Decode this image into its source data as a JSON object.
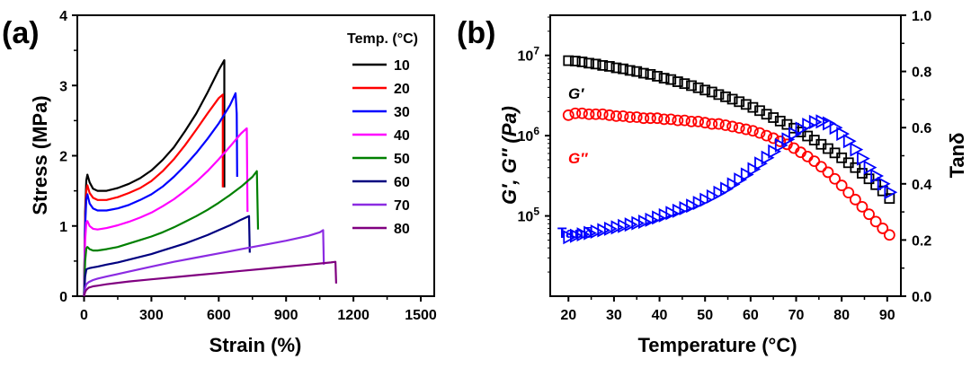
{
  "chart_data": [
    {
      "panel_label": "(a)",
      "type": "line",
      "xlabel": "Strain (%)",
      "ylabel": "Stress (MPa)",
      "xlim": [
        -30,
        1560
      ],
      "ylim": [
        0,
        4
      ],
      "xticks": [
        0,
        300,
        600,
        900,
        1200,
        1500
      ],
      "yticks": [
        0,
        1,
        2,
        3,
        4
      ],
      "grid": false,
      "legend": {
        "title": "Temp. (°C)",
        "placement": "top-right"
      },
      "series": [
        {
          "name": "10",
          "color": "#000000",
          "x": [
            0,
            5,
            10,
            15,
            25,
            40,
            60,
            100,
            150,
            200,
            250,
            300,
            350,
            400,
            450,
            500,
            550,
            600,
            625,
            625
          ],
          "y": [
            0,
            1.2,
            1.65,
            1.73,
            1.62,
            1.53,
            1.5,
            1.5,
            1.54,
            1.6,
            1.68,
            1.79,
            1.94,
            2.12,
            2.35,
            2.6,
            2.9,
            3.22,
            3.36,
            1.55
          ]
        },
        {
          "name": "20",
          "color": "#ff0000",
          "x": [
            0,
            5,
            10,
            15,
            25,
            40,
            60,
            100,
            150,
            200,
            250,
            300,
            350,
            400,
            450,
            500,
            550,
            600,
            618,
            618
          ],
          "y": [
            0,
            1.1,
            1.5,
            1.58,
            1.47,
            1.4,
            1.37,
            1.37,
            1.41,
            1.47,
            1.54,
            1.64,
            1.78,
            1.95,
            2.15,
            2.37,
            2.6,
            2.82,
            2.87,
            1.55
          ]
        },
        {
          "name": "30",
          "color": "#0000ff",
          "x": [
            0,
            5,
            10,
            15,
            25,
            40,
            60,
            100,
            150,
            200,
            250,
            300,
            350,
            400,
            450,
            500,
            550,
            600,
            650,
            675,
            680,
            682
          ],
          "y": [
            0,
            1.0,
            1.38,
            1.45,
            1.32,
            1.25,
            1.22,
            1.22,
            1.25,
            1.3,
            1.37,
            1.45,
            1.56,
            1.7,
            1.86,
            2.04,
            2.24,
            2.46,
            2.72,
            2.89,
            2.6,
            1.7
          ]
        },
        {
          "name": "40",
          "color": "#ff00ff",
          "x": [
            0,
            5,
            10,
            15,
            25,
            40,
            60,
            100,
            150,
            200,
            250,
            300,
            350,
            400,
            450,
            500,
            550,
            600,
            650,
            700,
            725,
            728
          ],
          "y": [
            0,
            0.8,
            1.05,
            1.07,
            1.0,
            0.96,
            0.95,
            0.97,
            1.01,
            1.06,
            1.12,
            1.19,
            1.28,
            1.38,
            1.5,
            1.63,
            1.78,
            1.95,
            2.13,
            2.32,
            2.39,
            1.2
          ]
        },
        {
          "name": "50",
          "color": "#008000",
          "x": [
            0,
            5,
            10,
            15,
            25,
            40,
            60,
            100,
            150,
            200,
            250,
            300,
            350,
            400,
            450,
            500,
            550,
            600,
            650,
            700,
            750,
            770,
            775
          ],
          "y": [
            0,
            0.5,
            0.68,
            0.7,
            0.67,
            0.65,
            0.65,
            0.67,
            0.7,
            0.75,
            0.8,
            0.85,
            0.91,
            0.98,
            1.06,
            1.14,
            1.23,
            1.33,
            1.44,
            1.56,
            1.7,
            1.78,
            0.95
          ]
        },
        {
          "name": "60",
          "color": "#000080",
          "x": [
            0,
            5,
            10,
            15,
            25,
            40,
            60,
            100,
            150,
            200,
            250,
            300,
            350,
            400,
            450,
            500,
            550,
            600,
            650,
            700,
            735,
            738
          ],
          "y": [
            0,
            0.28,
            0.38,
            0.39,
            0.4,
            0.41,
            0.42,
            0.45,
            0.48,
            0.52,
            0.56,
            0.6,
            0.65,
            0.7,
            0.75,
            0.81,
            0.87,
            0.94,
            1.01,
            1.09,
            1.14,
            0.62
          ]
        },
        {
          "name": "70",
          "color": "#8b2be2",
          "x": [
            0,
            5,
            10,
            20,
            40,
            60,
            100,
            200,
            300,
            400,
            500,
            600,
            700,
            800,
            900,
            1000,
            1050,
            1065,
            1068
          ],
          "y": [
            0,
            0.12,
            0.17,
            0.2,
            0.23,
            0.25,
            0.28,
            0.35,
            0.42,
            0.49,
            0.55,
            0.61,
            0.67,
            0.73,
            0.79,
            0.86,
            0.91,
            0.94,
            0.45
          ]
        },
        {
          "name": "80",
          "color": "#800080",
          "x": [
            0,
            5,
            10,
            20,
            40,
            60,
            100,
            200,
            300,
            400,
            500,
            600,
            700,
            800,
            900,
            1000,
            1100,
            1120,
            1123
          ],
          "y": [
            0,
            0.06,
            0.09,
            0.12,
            0.14,
            0.15,
            0.17,
            0.21,
            0.24,
            0.27,
            0.3,
            0.33,
            0.36,
            0.39,
            0.42,
            0.45,
            0.48,
            0.49,
            0.18
          ]
        }
      ]
    },
    {
      "panel_label": "(b)",
      "type": "scatter",
      "xlabel": "Temperature (°C)",
      "ylabel": "G′, G″ (Pa)",
      "y2label": "Tanδ",
      "xlim": [
        16,
        93
      ],
      "ylim_log": [
        4,
        7.5
      ],
      "y2lim": [
        0,
        1
      ],
      "xticks": [
        20,
        30,
        40,
        50,
        60,
        70,
        80,
        90
      ],
      "yticks_log": [
        "10^5",
        "10^6",
        "10^7"
      ],
      "y2ticks": [
        "0.0",
        "0.2",
        "0.4",
        "0.6",
        "0.8",
        "1.0"
      ],
      "grid": false,
      "x": [
        20,
        21.5,
        23,
        24.5,
        26,
        27.5,
        29,
        30.5,
        32,
        33.5,
        35,
        36.5,
        38,
        39.5,
        41,
        42.5,
        44,
        45.5,
        47,
        48.5,
        50,
        51.5,
        53,
        54.5,
        56,
        57.5,
        59,
        60.5,
        62,
        63.5,
        65,
        66.5,
        68,
        69.5,
        71,
        72.5,
        74,
        75.5,
        77,
        78.5,
        80,
        81.5,
        83,
        84.5,
        86,
        87.5,
        89,
        90.5
      ],
      "series": [
        {
          "name": "G′",
          "marker": "square",
          "color": "#000000",
          "axis": "left",
          "values": [
            8600000,
            8500000,
            8300000,
            8000000,
            7800000,
            7500000,
            7300000,
            7000000,
            6800000,
            6500000,
            6300000,
            6000000,
            5800000,
            5500000,
            5200000,
            5000000,
            4700000,
            4450000,
            4200000,
            3950000,
            3700000,
            3500000,
            3250000,
            3050000,
            2850000,
            2650000,
            2450000,
            2250000,
            2050000,
            1850000,
            1680000,
            1520000,
            1380000,
            1240000,
            1110000,
            990000,
            880000,
            780000,
            690000,
            610000,
            530000,
            460000,
            400000,
            340000,
            290000,
            245000,
            205000,
            165000
          ]
        },
        {
          "name": "G″",
          "marker": "circle",
          "color": "#ff0000",
          "axis": "left",
          "values": [
            1800000,
            1900000,
            1900000,
            1850000,
            1850000,
            1850000,
            1800000,
            1750000,
            1750000,
            1700000,
            1700000,
            1650000,
            1650000,
            1650000,
            1600000,
            1600000,
            1550000,
            1550000,
            1500000,
            1500000,
            1450000,
            1400000,
            1400000,
            1350000,
            1300000,
            1250000,
            1200000,
            1150000,
            1080000,
            1000000,
            930000,
            850000,
            780000,
            700000,
            620000,
            550000,
            480000,
            410000,
            350000,
            290000,
            240000,
            195000,
            160000,
            130000,
            105000,
            85000,
            70000,
            58000
          ]
        },
        {
          "name": "Tanδ",
          "marker": "triangle-right",
          "color": "#0000ff",
          "axis": "right",
          "values": [
            0.21,
            0.215,
            0.22,
            0.225,
            0.23,
            0.235,
            0.24,
            0.245,
            0.25,
            0.255,
            0.26,
            0.265,
            0.272,
            0.28,
            0.288,
            0.296,
            0.304,
            0.313,
            0.322,
            0.332,
            0.343,
            0.355,
            0.368,
            0.382,
            0.398,
            0.415,
            0.433,
            0.452,
            0.472,
            0.493,
            0.515,
            0.537,
            0.558,
            0.578,
            0.596,
            0.61,
            0.62,
            0.622,
            0.615,
            0.6,
            0.578,
            0.552,
            0.522,
            0.49,
            0.458,
            0.428,
            0.4,
            0.37
          ]
        }
      ],
      "annotations": [
        {
          "text": "G′",
          "color": "#000000"
        },
        {
          "text": "G″",
          "color": "#ff0000"
        },
        {
          "text": "Tanδ",
          "color": "#0000ff"
        }
      ]
    }
  ]
}
